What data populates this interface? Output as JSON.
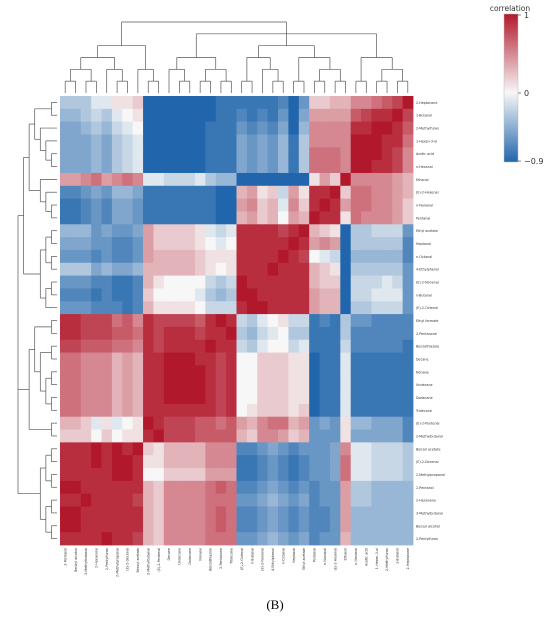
{
  "panel_label": "(B)",
  "chart_data": {
    "type": "heatmap",
    "title": "",
    "colorbar": {
      "title": "correlation",
      "ticks": [
        1,
        0,
        -0.9
      ],
      "tick_labels": [
        "1",
        "0",
        "−0.9"
      ],
      "low_color": "#2166ac",
      "mid_color": "#f7f7f7",
      "high_color": "#b2182b"
    },
    "row_labels": [
      "2-Heptanone",
      "1-Butanol",
      "2-Methylfuran",
      "1-Hexen-3-ol",
      "Acetic acid",
      "n-Hexanal",
      "Ethanol",
      "(E)-2-Hexenal",
      "n-Nonanal",
      "Pentanal",
      "Ethyl acetate",
      "Heptanal",
      "n-Octanal",
      "4-Ethylphenol",
      "(E)-2-Nonenal",
      "n-Butanal",
      "(E)-2-Octenal",
      "Ethyl formate",
      "2-Pentanone",
      "Benzothiazole",
      "Decane",
      "Nonane",
      "Undecane",
      "Dodecane",
      "Tridecane",
      "(E)-2-Pentenal",
      "2-Methylbutanal",
      "Benzyl acetate",
      "(E)-2-Decenal",
      "2-Methylpropanal",
      "2-Pentanol",
      "2-Hexanone",
      "3-Methylbutanal",
      "Benzyl alcohol",
      "2-Pentylfuran"
    ],
    "col_labels": [
      "2-Pentanol",
      "Benzyl alcohol",
      "3-Methylbutanal",
      "2-Hexanone",
      "2-Pentylfuran",
      "2-Methylpropanal",
      "(E)-2-Decenal",
      "Benzyl acetate",
      "2-Methylbutanal",
      "(E)-2-Pentenal",
      "Decane",
      "Undecane",
      "Dodecane",
      "Nonane",
      "Benzothiazole",
      "2-Pentanone",
      "Tridecane",
      "(E)-2-Octenal",
      "n-Butanal",
      "(E)-2-Nonenal",
      "4-Ethylphenol",
      "n-Octanal",
      "Heptanal",
      "Ethyl acetate",
      "Pentanal",
      "n-Nonanal",
      "(E)-2-Hexenal",
      "Ethanol",
      "n-Hexanal",
      "Acetic acid",
      "1-Hexen-3-ol",
      "2-Methylfuran",
      "1-Butanol",
      "2-Heptanone"
    ],
    "values": [
      [
        -0.3,
        -0.3,
        -0.3,
        -0.1,
        -0.1,
        0.1,
        0.1,
        0.2,
        -0.9,
        -0.9,
        -0.9,
        -0.9,
        -0.9,
        -0.9,
        -0.9,
        -0.8,
        -0.8,
        -0.8,
        -0.8,
        -0.8,
        -0.8,
        -0.7,
        -0.9,
        -0.6,
        0.2,
        0.2,
        0.3,
        0.3,
        0.5,
        0.5,
        0.6,
        0.7,
        0.8,
        1.0
      ],
      [
        -0.4,
        -0.4,
        -0.3,
        -0.2,
        -0.3,
        -0.1,
        0.0,
        0.1,
        -0.9,
        -0.9,
        -0.9,
        -0.9,
        -0.9,
        -0.9,
        -0.9,
        -0.8,
        -0.8,
        -0.7,
        -0.8,
        -0.7,
        -0.8,
        -0.6,
        -0.9,
        -0.5,
        0.4,
        0.4,
        0.4,
        0.4,
        0.7,
        0.8,
        0.9,
        0.9,
        1.0,
        0.8
      ],
      [
        -0.5,
        -0.5,
        -0.4,
        -0.3,
        -0.4,
        -0.2,
        -0.1,
        0.0,
        -0.9,
        -0.9,
        -0.9,
        -0.9,
        -0.9,
        -0.9,
        -0.8,
        -0.8,
        -0.8,
        -0.6,
        -0.7,
        -0.6,
        -0.7,
        -0.5,
        -0.9,
        -0.4,
        0.5,
        0.5,
        0.5,
        0.5,
        0.9,
        0.9,
        1.0,
        1.0,
        0.9,
        0.7
      ],
      [
        -0.5,
        -0.5,
        -0.5,
        -0.4,
        -0.5,
        -0.3,
        -0.2,
        -0.1,
        -0.9,
        -0.9,
        -0.9,
        -0.9,
        -0.9,
        -0.9,
        -0.8,
        -0.8,
        -0.8,
        -0.5,
        -0.6,
        -0.5,
        -0.6,
        -0.4,
        -0.8,
        -0.3,
        0.5,
        0.5,
        0.5,
        0.5,
        1.0,
        1.0,
        1.0,
        0.9,
        0.9,
        0.6
      ],
      [
        -0.5,
        -0.5,
        -0.5,
        -0.4,
        -0.5,
        -0.3,
        -0.2,
        -0.1,
        -0.9,
        -0.9,
        -0.9,
        -0.9,
        -0.9,
        -0.9,
        -0.8,
        -0.8,
        -0.8,
        -0.5,
        -0.6,
        -0.5,
        -0.6,
        -0.4,
        -0.8,
        -0.3,
        0.6,
        0.6,
        0.6,
        0.5,
        1.0,
        1.0,
        1.0,
        0.9,
        0.8,
        0.5
      ],
      [
        -0.5,
        -0.5,
        -0.5,
        -0.4,
        -0.5,
        -0.3,
        -0.2,
        -0.1,
        -0.9,
        -0.9,
        -0.9,
        -0.9,
        -0.9,
        -0.9,
        -0.8,
        -0.8,
        -0.8,
        -0.5,
        -0.6,
        -0.5,
        -0.6,
        -0.4,
        -0.8,
        -0.3,
        0.6,
        0.6,
        0.6,
        0.5,
        1.0,
        1.0,
        0.9,
        0.9,
        0.8,
        0.5
      ],
      [
        0.4,
        0.4,
        0.5,
        0.6,
        0.4,
        0.5,
        0.6,
        0.5,
        -0.1,
        -0.1,
        -0.2,
        -0.2,
        -0.2,
        -0.1,
        -0.3,
        -0.4,
        -0.4,
        -0.9,
        -0.9,
        -0.9,
        -0.9,
        -0.9,
        -0.9,
        -0.9,
        0.1,
        0.4,
        0.2,
        1.0,
        0.5,
        0.5,
        0.5,
        0.5,
        0.4,
        0.3
      ],
      [
        -0.7,
        -0.7,
        -0.6,
        -0.5,
        -0.6,
        -0.4,
        -0.4,
        -0.5,
        -0.8,
        -0.8,
        -0.8,
        -0.8,
        -0.8,
        -0.8,
        -0.8,
        -0.9,
        -0.9,
        0.3,
        0.4,
        0.1,
        0.2,
        -0.2,
        0.4,
        0.1,
        0.9,
        0.9,
        1.0,
        0.2,
        0.6,
        0.6,
        0.5,
        0.5,
        0.4,
        0.3
      ],
      [
        -0.8,
        -0.8,
        -0.7,
        -0.6,
        -0.7,
        -0.5,
        -0.5,
        -0.6,
        -0.8,
        -0.8,
        -0.8,
        -0.8,
        -0.8,
        -0.8,
        -0.8,
        -0.9,
        -0.9,
        0.4,
        0.5,
        0.2,
        0.3,
        -0.1,
        0.5,
        0.2,
        0.9,
        1.0,
        0.9,
        0.4,
        0.6,
        0.6,
        0.5,
        0.5,
        0.4,
        0.2
      ],
      [
        -0.8,
        -0.8,
        -0.7,
        -0.6,
        -0.7,
        -0.5,
        -0.5,
        -0.6,
        -0.8,
        -0.8,
        -0.8,
        -0.8,
        -0.8,
        -0.8,
        -0.8,
        -0.9,
        -0.9,
        0.3,
        0.4,
        0.2,
        0.3,
        0.0,
        0.4,
        0.3,
        1.0,
        0.9,
        0.9,
        0.1,
        0.6,
        0.5,
        0.5,
        0.5,
        0.4,
        0.2
      ],
      [
        -0.4,
        -0.4,
        -0.4,
        -0.6,
        -0.5,
        -0.6,
        -0.6,
        -0.5,
        0.4,
        0.2,
        0.2,
        0.2,
        0.2,
        0.1,
        -0.1,
        -0.2,
        -0.1,
        0.9,
        0.9,
        0.9,
        0.9,
        0.8,
        0.9,
        1.0,
        0.3,
        0.2,
        0.1,
        -0.9,
        -0.3,
        -0.3,
        -0.2,
        -0.2,
        -0.2,
        -0.6
      ],
      [
        -0.5,
        -0.5,
        -0.5,
        -0.6,
        -0.6,
        -0.7,
        -0.7,
        -0.6,
        0.4,
        0.2,
        0.2,
        0.2,
        0.2,
        0.1,
        0.0,
        -0.1,
        0.0,
        0.9,
        0.9,
        0.9,
        0.9,
        0.9,
        1.0,
        0.9,
        0.4,
        0.5,
        0.4,
        -0.9,
        -0.3,
        -0.3,
        -0.3,
        -0.3,
        -0.3,
        -0.7
      ],
      [
        -0.6,
        -0.6,
        -0.6,
        -0.7,
        -0.6,
        -0.7,
        -0.7,
        -0.6,
        0.4,
        0.3,
        0.3,
        0.3,
        0.3,
        0.2,
        0.1,
        0.1,
        0.1,
        0.9,
        0.9,
        0.9,
        0.9,
        1.0,
        0.9,
        0.8,
        0.0,
        -0.1,
        -0.2,
        -0.9,
        -0.4,
        -0.4,
        -0.4,
        -0.4,
        -0.4,
        -0.7
      ],
      [
        -0.3,
        -0.3,
        -0.3,
        -0.5,
        -0.4,
        -0.5,
        -0.5,
        -0.4,
        0.3,
        0.3,
        0.3,
        0.3,
        0.3,
        0.2,
        0.1,
        0.0,
        0.1,
        0.9,
        0.9,
        0.9,
        1.0,
        0.9,
        0.9,
        0.9,
        0.3,
        0.2,
        0.1,
        -0.9,
        -0.3,
        -0.3,
        -0.3,
        -0.3,
        -0.3,
        -0.6
      ],
      [
        -0.6,
        -0.6,
        -0.6,
        -0.7,
        -0.7,
        -0.8,
        -0.8,
        -0.7,
        0.3,
        0.1,
        0.0,
        0.0,
        0.0,
        0.0,
        -0.2,
        -0.3,
        -0.2,
        1.0,
        0.9,
        0.9,
        0.9,
        0.9,
        0.9,
        0.9,
        0.3,
        0.2,
        0.2,
        -0.9,
        -0.2,
        -0.2,
        -0.2,
        -0.1,
        -0.2,
        -0.6
      ],
      [
        -0.7,
        -0.7,
        -0.7,
        -0.8,
        -0.7,
        -0.8,
        -0.8,
        -0.7,
        0.2,
        0.0,
        0.0,
        0.0,
        0.0,
        -0.1,
        -0.3,
        -0.4,
        -0.3,
        1.0,
        1.0,
        0.9,
        0.9,
        0.9,
        0.9,
        0.9,
        0.4,
        0.3,
        0.3,
        -0.9,
        -0.2,
        -0.2,
        -0.1,
        -0.1,
        -0.1,
        -0.6
      ],
      [
        -0.6,
        -0.6,
        -0.6,
        -0.7,
        -0.7,
        -0.7,
        -0.8,
        -0.7,
        0.3,
        0.1,
        0.1,
        0.1,
        0.1,
        0.0,
        -0.2,
        -0.2,
        -0.2,
        0.9,
        1.0,
        1.0,
        0.9,
        0.9,
        0.9,
        0.9,
        0.4,
        0.3,
        0.3,
        -0.9,
        -0.3,
        -0.3,
        -0.2,
        -0.2,
        -0.2,
        -0.6
      ],
      [
        0.9,
        0.9,
        0.8,
        0.8,
        0.8,
        0.6,
        0.7,
        0.5,
        0.9,
        0.8,
        0.8,
        0.8,
        0.8,
        0.7,
        0.9,
        1.0,
        0.9,
        -0.2,
        -0.3,
        -0.1,
        0.0,
        0.1,
        -0.2,
        -0.2,
        -0.8,
        -0.7,
        -0.8,
        -0.3,
        -0.6,
        -0.6,
        -0.7,
        -0.7,
        -0.7,
        -0.7
      ],
      [
        0.9,
        0.9,
        0.8,
        0.8,
        0.8,
        0.7,
        0.7,
        0.6,
        0.9,
        0.8,
        0.9,
        0.9,
        0.9,
        0.8,
        0.9,
        0.9,
        1.0,
        -0.3,
        -0.4,
        -0.2,
        -0.1,
        0.0,
        -0.3,
        -0.3,
        -0.8,
        -0.8,
        -0.8,
        -0.3,
        -0.7,
        -0.7,
        -0.7,
        -0.7,
        -0.7,
        -0.7
      ],
      [
        0.8,
        0.8,
        0.7,
        0.7,
        0.7,
        0.6,
        0.6,
        0.5,
        0.9,
        0.8,
        0.9,
        0.9,
        0.9,
        0.9,
        1.0,
        0.9,
        0.9,
        -0.2,
        -0.3,
        -0.1,
        0.0,
        0.0,
        -0.2,
        -0.1,
        -0.8,
        -0.8,
        -0.8,
        -0.2,
        -0.7,
        -0.7,
        -0.7,
        -0.7,
        -0.7,
        -0.8
      ],
      [
        0.6,
        0.6,
        0.5,
        0.5,
        0.5,
        0.3,
        0.4,
        0.3,
        0.9,
        0.9,
        1.0,
        1.0,
        1.0,
        0.9,
        0.9,
        0.8,
        0.9,
        0.0,
        0.0,
        0.2,
        0.2,
        0.2,
        0.1,
        0.1,
        -0.9,
        -0.8,
        -0.8,
        -0.1,
        -0.8,
        -0.8,
        -0.8,
        -0.8,
        -0.8,
        -0.8
      ],
      [
        0.6,
        0.6,
        0.5,
        0.5,
        0.5,
        0.3,
        0.4,
        0.3,
        0.9,
        0.9,
        1.0,
        1.0,
        1.0,
        1.0,
        0.9,
        0.8,
        0.9,
        0.0,
        0.0,
        0.2,
        0.2,
        0.2,
        0.1,
        0.1,
        -0.9,
        -0.8,
        -0.8,
        -0.1,
        -0.8,
        -0.8,
        -0.8,
        -0.8,
        -0.8,
        -0.8
      ],
      [
        0.6,
        0.6,
        0.5,
        0.5,
        0.5,
        0.3,
        0.4,
        0.3,
        0.9,
        0.9,
        1.0,
        1.0,
        1.0,
        1.0,
        0.9,
        0.8,
        0.9,
        0.0,
        0.0,
        0.2,
        0.2,
        0.2,
        0.1,
        0.1,
        -0.9,
        -0.8,
        -0.8,
        -0.1,
        -0.8,
        -0.8,
        -0.8,
        -0.8,
        -0.8,
        -0.8
      ],
      [
        0.6,
        0.6,
        0.5,
        0.5,
        0.5,
        0.3,
        0.4,
        0.3,
        0.9,
        0.9,
        1.0,
        1.0,
        1.0,
        1.0,
        0.9,
        0.8,
        0.9,
        0.0,
        0.0,
        0.2,
        0.2,
        0.2,
        0.1,
        0.1,
        -0.9,
        -0.8,
        -0.8,
        -0.1,
        -0.8,
        -0.8,
        -0.8,
        -0.8,
        -0.8,
        -0.8
      ],
      [
        0.6,
        0.6,
        0.5,
        0.5,
        0.5,
        0.3,
        0.4,
        0.3,
        0.9,
        0.9,
        0.9,
        0.9,
        0.9,
        0.9,
        0.9,
        0.8,
        0.9,
        0.0,
        0.1,
        0.2,
        0.2,
        0.2,
        0.1,
        0.2,
        -0.9,
        -0.8,
        -0.8,
        -0.1,
        -0.8,
        -0.8,
        -0.8,
        -0.8,
        -0.8,
        -0.8
      ],
      [
        0.3,
        0.3,
        0.2,
        -0.1,
        0.1,
        -0.1,
        0.0,
        0.1,
        1.0,
        0.9,
        0.8,
        0.8,
        0.8,
        0.7,
        0.7,
        0.6,
        0.7,
        0.4,
        0.3,
        0.5,
        0.6,
        0.6,
        0.3,
        0.4,
        -0.6,
        -0.5,
        -0.6,
        0.1,
        -0.4,
        -0.4,
        -0.5,
        -0.5,
        -0.5,
        -0.7
      ],
      [
        0.2,
        0.2,
        0.2,
        0.0,
        0.2,
        0.0,
        0.1,
        0.1,
        0.9,
        1.0,
        0.8,
        0.8,
        0.8,
        0.7,
        0.7,
        0.7,
        0.7,
        0.3,
        0.2,
        0.5,
        0.5,
        0.4,
        0.2,
        0.3,
        -0.6,
        -0.6,
        -0.6,
        0.1,
        -0.5,
        -0.5,
        -0.5,
        -0.5,
        -0.5,
        -0.7
      ],
      [
        0.9,
        0.9,
        0.9,
        1.0,
        0.9,
        1.0,
        0.9,
        1.0,
        0.2,
        0.1,
        0.3,
        0.3,
        0.3,
        0.3,
        0.5,
        0.5,
        0.5,
        -0.7,
        -0.7,
        -0.6,
        -0.5,
        -0.6,
        -0.7,
        -0.6,
        -0.6,
        -0.6,
        -0.5,
        0.5,
        -0.1,
        -0.1,
        -0.2,
        -0.2,
        -0.2,
        -0.3
      ],
      [
        0.9,
        0.9,
        0.9,
        1.0,
        0.9,
        1.0,
        1.0,
        0.9,
        0.1,
        0.1,
        0.3,
        0.3,
        0.3,
        0.3,
        0.5,
        0.5,
        0.5,
        -0.8,
        -0.8,
        -0.7,
        -0.6,
        -0.7,
        -0.8,
        -0.7,
        -0.6,
        -0.6,
        -0.5,
        0.6,
        -0.1,
        -0.1,
        -0.2,
        -0.2,
        -0.2,
        -0.3
      ],
      [
        0.9,
        0.9,
        0.9,
        0.9,
        0.9,
        1.0,
        1.0,
        0.9,
        0.0,
        0.0,
        0.2,
        0.2,
        0.2,
        0.2,
        0.4,
        0.4,
        0.4,
        -0.8,
        -0.8,
        -0.7,
        -0.6,
        -0.7,
        -0.8,
        -0.7,
        -0.6,
        -0.6,
        -0.5,
        0.6,
        -0.1,
        -0.1,
        -0.2,
        -0.2,
        -0.2,
        -0.3
      ],
      [
        1.0,
        1.0,
        0.9,
        0.9,
        0.9,
        0.9,
        0.9,
        0.9,
        0.3,
        0.2,
        0.5,
        0.5,
        0.5,
        0.5,
        0.6,
        0.7,
        0.6,
        -0.7,
        -0.7,
        -0.6,
        -0.5,
        -0.6,
        -0.7,
        -0.6,
        -0.7,
        -0.6,
        -0.6,
        0.4,
        -0.3,
        -0.3,
        -0.4,
        -0.4,
        -0.4,
        -0.4
      ],
      [
        0.9,
        0.9,
        1.0,
        0.9,
        0.9,
        0.9,
        0.9,
        0.8,
        0.3,
        0.2,
        0.5,
        0.5,
        0.5,
        0.5,
        0.6,
        0.6,
        0.6,
        -0.6,
        -0.6,
        -0.5,
        -0.4,
        -0.5,
        -0.6,
        -0.5,
        -0.7,
        -0.6,
        -0.6,
        0.4,
        -0.3,
        -0.3,
        -0.4,
        -0.4,
        -0.4,
        -0.4
      ],
      [
        1.0,
        1.0,
        0.9,
        0.9,
        0.9,
        0.9,
        0.9,
        0.9,
        0.3,
        0.2,
        0.5,
        0.5,
        0.5,
        0.5,
        0.6,
        0.7,
        0.6,
        -0.7,
        -0.7,
        -0.6,
        -0.5,
        -0.6,
        -0.7,
        -0.6,
        -0.7,
        -0.7,
        -0.6,
        0.4,
        -0.4,
        -0.4,
        -0.4,
        -0.4,
        -0.4,
        -0.4
      ],
      [
        1.0,
        1.0,
        0.9,
        0.9,
        0.9,
        0.9,
        0.9,
        0.9,
        0.3,
        0.2,
        0.5,
        0.5,
        0.5,
        0.5,
        0.6,
        0.7,
        0.6,
        -0.7,
        -0.7,
        -0.6,
        -0.5,
        -0.6,
        -0.7,
        -0.6,
        -0.7,
        -0.7,
        -0.6,
        0.4,
        -0.4,
        -0.4,
        -0.4,
        -0.4,
        -0.4,
        -0.4
      ],
      [
        0.9,
        0.9,
        0.9,
        0.9,
        1.0,
        0.9,
        0.9,
        0.8,
        0.3,
        0.2,
        0.5,
        0.5,
        0.5,
        0.5,
        0.6,
        0.6,
        0.6,
        -0.6,
        -0.6,
        -0.5,
        -0.4,
        -0.5,
        -0.6,
        -0.5,
        -0.7,
        -0.6,
        -0.6,
        0.3,
        -0.4,
        -0.4,
        -0.4,
        -0.4,
        -0.4,
        -0.4
      ]
    ],
    "row_dendrogram": true,
    "col_dendrogram": true,
    "legend_placement": "top-right",
    "grid": false
  }
}
